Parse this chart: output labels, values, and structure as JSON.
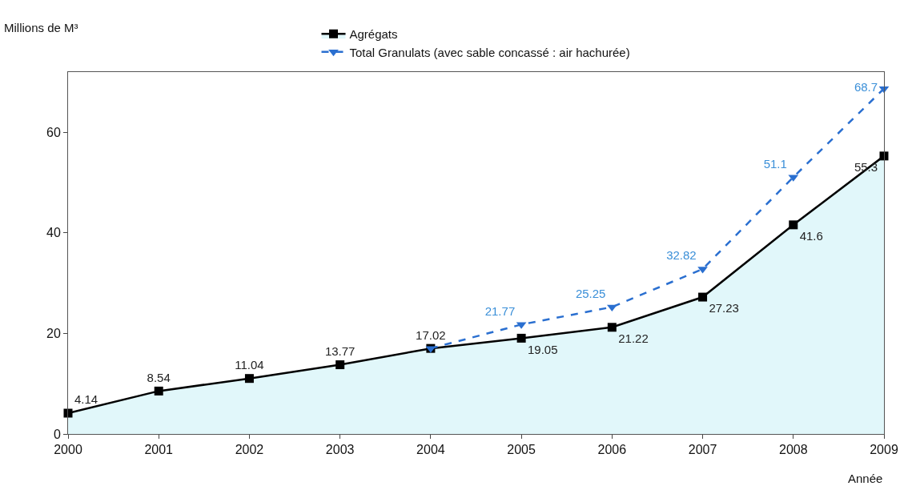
{
  "chart_data": {
    "type": "line",
    "ylabel": "Millions de M³",
    "xlabel": "Année",
    "x": [
      2000,
      2001,
      2002,
      2003,
      2004,
      2005,
      2006,
      2007,
      2008,
      2009
    ],
    "series": [
      {
        "name": "Agrégats",
        "type": "area",
        "color": "#000000",
        "marker": "square",
        "line_style": "solid",
        "values": [
          4.14,
          8.54,
          11.04,
          13.77,
          17.02,
          19.05,
          21.22,
          27.23,
          41.6,
          55.3
        ],
        "value_labels": [
          "4.14",
          "8.54",
          "11.04",
          "13.77",
          "17.02",
          "19.05",
          "21.22",
          "27.23",
          "41.6",
          "55.3"
        ]
      },
      {
        "name": "Total Granulats (avec sable concassé : air hachurée)",
        "type": "line",
        "color": "#2a6fd0",
        "marker": "triangle",
        "line_style": "dashed",
        "x": [
          2004,
          2005,
          2006,
          2007,
          2008,
          2009
        ],
        "values": [
          17.02,
          21.77,
          25.25,
          32.82,
          51.1,
          68.7
        ],
        "value_labels": [
          null,
          "21.77",
          "25.25",
          "32.82",
          "51.1",
          "68.7"
        ]
      }
    ],
    "xlim": [
      2000,
      2009
    ],
    "ylim": [
      0,
      72
    ],
    "xticks": [
      2000,
      2001,
      2002,
      2003,
      2004,
      2005,
      2006,
      2007,
      2008,
      2009
    ],
    "yticks": [
      0,
      20,
      40,
      60
    ],
    "grid": false,
    "legend": "top"
  }
}
